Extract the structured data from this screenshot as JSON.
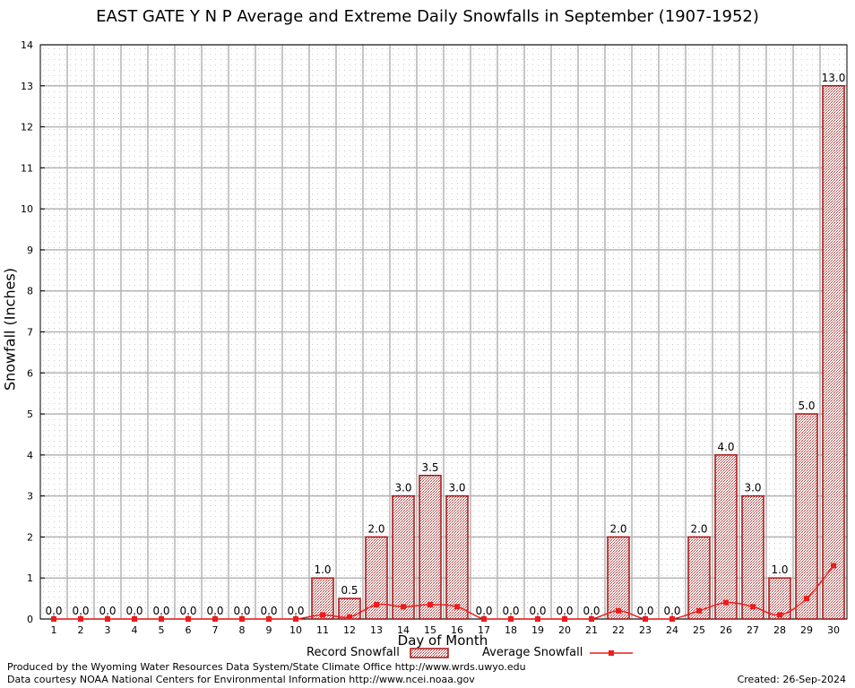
{
  "chart_data": {
    "type": "bar",
    "title": "EAST GATE Y N P Average and Extreme Daily Snowfalls in September (1907-1952)",
    "xlabel": "Day of Month",
    "ylabel": "Snowfall (Inches)",
    "ylim": [
      0,
      14
    ],
    "yticks": [
      "0",
      "1",
      "2",
      "3",
      "4",
      "5",
      "6",
      "7",
      "8",
      "9",
      "10",
      "11",
      "12",
      "13",
      "14"
    ],
    "grid": true,
    "categories": [
      "1",
      "2",
      "3",
      "4",
      "5",
      "6",
      "7",
      "8",
      "9",
      "10",
      "11",
      "12",
      "13",
      "14",
      "15",
      "16",
      "17",
      "18",
      "19",
      "20",
      "21",
      "22",
      "23",
      "24",
      "25",
      "26",
      "27",
      "28",
      "29",
      "30"
    ],
    "series": [
      {
        "name": "Record Snowfall",
        "kind": "bar",
        "color": "#aa1111",
        "values": [
          0,
          0,
          0,
          0,
          0,
          0,
          0,
          0,
          0,
          0,
          1.0,
          0.5,
          2.0,
          3.0,
          3.5,
          3.0,
          0,
          0,
          0,
          0,
          0,
          2.0,
          0,
          0,
          2.0,
          4.0,
          3.0,
          1.0,
          5.0,
          13.0
        ],
        "labels": [
          "0.0",
          "0.0",
          "0.0",
          "0.0",
          "0.0",
          "0.0",
          "0.0",
          "0.0",
          "0.0",
          "0.0",
          "1.0",
          "0.5",
          "2.0",
          "3.0",
          "3.5",
          "3.0",
          "0.0",
          "0.0",
          "0.0",
          "0.0",
          "0.0",
          "2.0",
          "0.0",
          "0.0",
          "2.0",
          "4.0",
          "3.0",
          "1.0",
          "5.0",
          "13.0"
        ]
      },
      {
        "name": "Average Snowfall",
        "kind": "line",
        "color": "#ee1c1c",
        "values": [
          0,
          0,
          0,
          0,
          0,
          0,
          0,
          0,
          0,
          0,
          0.1,
          0.05,
          0.35,
          0.3,
          0.35,
          0.3,
          0,
          0,
          0,
          0,
          0,
          0.2,
          0,
          0,
          0.2,
          0.4,
          0.3,
          0.1,
          0.5,
          1.3
        ]
      }
    ],
    "legend": {
      "position": "bottom-center"
    }
  },
  "footer": {
    "line1": "Produced by the Wyoming Water Resources Data System/State Climate Office http://www.wrds.uwyo.edu",
    "line2": "Data courtesy NOAA National Centers for Environmental Information http://www.ncei.noaa.gov",
    "created": "Created:  26-Sep-2024"
  }
}
